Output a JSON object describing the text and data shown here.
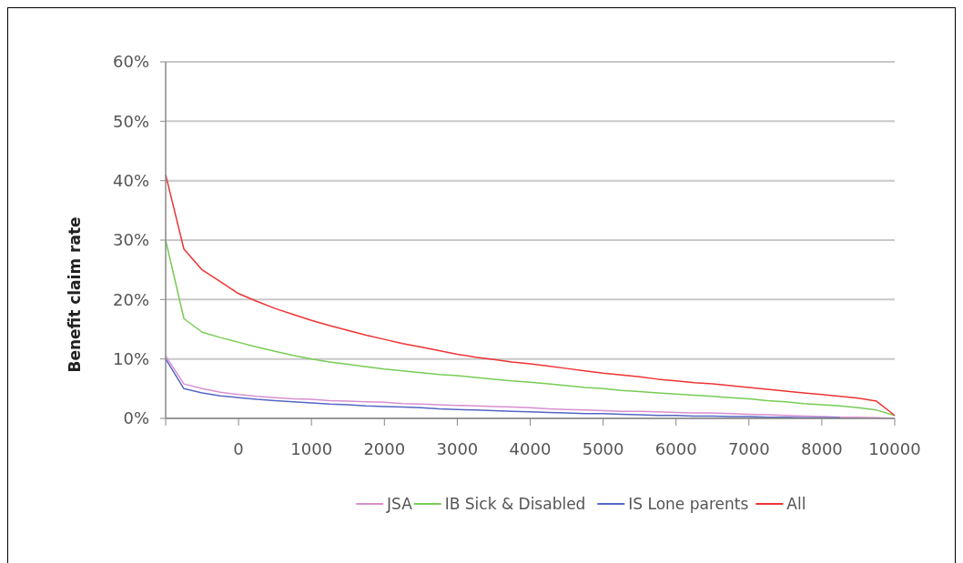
{
  "chart_data": {
    "type": "line",
    "ylabel": "Benefit claim rate",
    "categories": [
      null,
      null,
      null,
      null,
      "0",
      null,
      null,
      null,
      "1000",
      null,
      null,
      null,
      "2000",
      null,
      null,
      null,
      "3000",
      null,
      null,
      null,
      "4000",
      null,
      null,
      null,
      "5000",
      null,
      null,
      null,
      "6000",
      null,
      null,
      null,
      "7000",
      null,
      null,
      null,
      "8000",
      null,
      null,
      null,
      "10000"
    ],
    "ylim": [
      0,
      60
    ],
    "yticks": [
      {
        "value": 0,
        "label": "0%"
      },
      {
        "value": 10,
        "label": "10%"
      },
      {
        "value": 20,
        "label": "20%"
      },
      {
        "value": 30,
        "label": "30%"
      },
      {
        "value": 40,
        "label": "40%"
      },
      {
        "value": 50,
        "label": "50%"
      },
      {
        "value": 60,
        "label": "60%"
      }
    ],
    "grid": "y",
    "legend": "bottom",
    "marker": "none",
    "line_style": "solid",
    "series": [
      {
        "name": "JSA",
        "color": "#d98fd0",
        "values": [
          10.5,
          5.8,
          5,
          4.4,
          4,
          3.7,
          3.5,
          3.3,
          3.2,
          3,
          2.9,
          2.8,
          2.7,
          2.5,
          2.4,
          2.3,
          2.2,
          2.1,
          2,
          1.9,
          1.8,
          1.6,
          1.5,
          1.4,
          1.3,
          1.2,
          1.2,
          1.1,
          1,
          0.9,
          0.9,
          0.8,
          0.7,
          0.6,
          0.5,
          0.4,
          0.3,
          0.2,
          0.2,
          0.1,
          0
        ]
      },
      {
        "name": "IB Sick & Disabled",
        "color": "#77cc55",
        "values": [
          30,
          16.8,
          14.5,
          13.6,
          12.8,
          12,
          11.3,
          10.6,
          10,
          9.5,
          9.1,
          8.7,
          8.3,
          8,
          7.7,
          7.4,
          7.2,
          6.9,
          6.6,
          6.3,
          6.1,
          5.8,
          5.5,
          5.2,
          5,
          4.7,
          4.5,
          4.3,
          4.1,
          3.9,
          3.7,
          3.5,
          3.3,
          3,
          2.8,
          2.5,
          2.3,
          2.1,
          1.8,
          1.4,
          0.5
        ]
      },
      {
        "name": "IS Lone parents",
        "color": "#5566c4",
        "values": [
          10,
          5,
          4.3,
          3.8,
          3.5,
          3.2,
          3,
          2.8,
          2.6,
          2.4,
          2.3,
          2.1,
          2,
          1.9,
          1.8,
          1.6,
          1.5,
          1.4,
          1.3,
          1.2,
          1.1,
          1,
          0.9,
          0.8,
          0.8,
          0.7,
          0.6,
          0.5,
          0.5,
          0.4,
          0.4,
          0.3,
          0.3,
          0.2,
          0.2,
          0.1,
          0.1,
          0.1,
          null,
          null,
          null
        ]
      },
      {
        "name": "All",
        "color": "#ee3333",
        "values": [
          41,
          28.5,
          25,
          23,
          21,
          19.7,
          18.5,
          17.5,
          16.5,
          15.6,
          14.8,
          14,
          13.3,
          12.6,
          12,
          11.4,
          10.8,
          10.3,
          9.9,
          9.5,
          9.2,
          8.8,
          8.4,
          8,
          7.6,
          7.3,
          7,
          6.6,
          6.3,
          6,
          5.8,
          5.5,
          5.2,
          4.9,
          4.6,
          4.3,
          4,
          3.7,
          3.4,
          2.9,
          0.5
        ]
      }
    ]
  }
}
